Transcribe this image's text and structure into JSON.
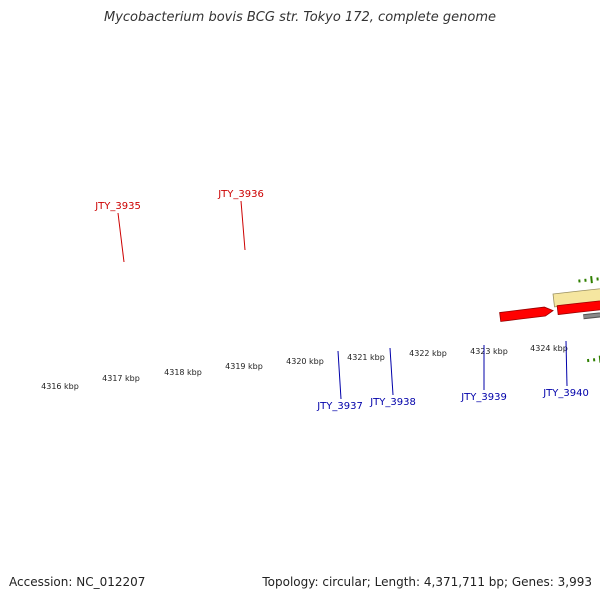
{
  "title": "Mycobacterium bovis BCG str. Tokyo 172, complete genome",
  "footer": {
    "accession": "Accession: NC_012207",
    "summary": "Topology: circular; Length: 4,371,711 bp; Genes: 3,993"
  },
  "colors": {
    "forward_gene": "#ff0000",
    "reverse_gene": "#0000ff",
    "forward_label": "#cc0000",
    "reverse_label": "#0000aa",
    "forward_cds": "#f5e6a0",
    "reverse_cds": "#b8b070",
    "tick": "#2f7f00",
    "backbone": "#8a8a8a"
  },
  "scale_labels": [
    "4316 kbp",
    "4317 kbp",
    "4318 kbp",
    "4319 kbp",
    "4320 kbp",
    "4321 kbp",
    "4322 kbp",
    "4323 kbp",
    "4324 kbp"
  ],
  "forward_genes": [
    {
      "name": "JTY_3935"
    },
    {
      "name": "JTY_3936"
    }
  ],
  "reverse_genes": [
    {
      "name": "JTY_3937"
    },
    {
      "name": "JTY_3938"
    },
    {
      "name": "JTY_3939"
    },
    {
      "name": "JTY_3940"
    }
  ]
}
